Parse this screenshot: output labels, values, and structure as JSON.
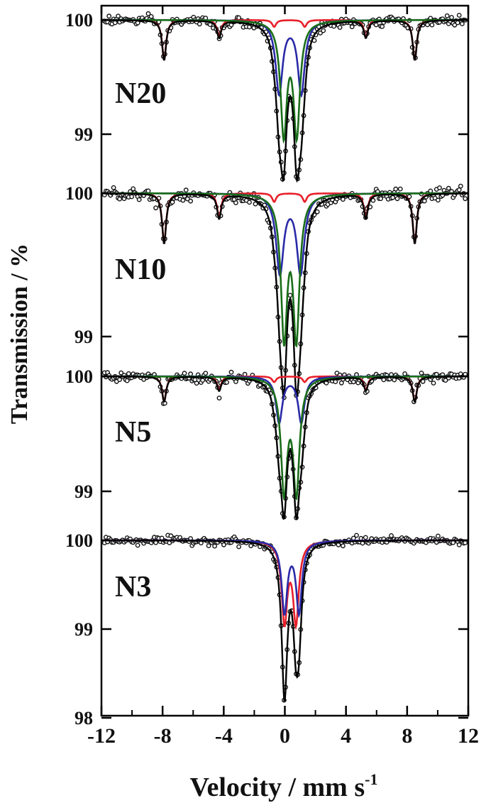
{
  "chart_data": {
    "type": "scatter",
    "title": "",
    "xlabel": "Velocity / mm s",
    "xlabel_superscript": "-1",
    "ylabel": "Transmission / %",
    "xlim": [
      -12,
      12
    ],
    "xticks": [
      -12,
      -8,
      -4,
      0,
      4,
      8,
      12
    ],
    "xtick_labels": [
      "-12",
      "-8",
      "-4",
      "0",
      "4",
      "8",
      "12"
    ],
    "grid": false,
    "colors": {
      "points": "#111111",
      "fit_total": "#000000",
      "sextet": "#e8202a",
      "doublet_1": "#2a2aa8",
      "doublet_2": "#1a6e1a"
    },
    "panels": [
      {
        "label": "N20",
        "ylim": [
          98.9,
          100.05
        ],
        "yticks": [
          99,
          100
        ],
        "ytick_labels": [
          "99",
          "100"
        ],
        "sextet": {
          "lines": [
            -7.9,
            -4.3,
            -0.7,
            1.3,
            5.3,
            8.5
          ],
          "depths": [
            0.35,
            0.15,
            0.06,
            0.06,
            0.15,
            0.35
          ],
          "width": 0.32
        },
        "doublet_1": {
          "center": 0.35,
          "split": 1.45,
          "depth": 0.64,
          "width": 0.55
        },
        "doublet_2": {
          "center": 0.35,
          "split": 0.85,
          "depth": 0.98,
          "width": 0.5
        }
      },
      {
        "label": "N10",
        "ylim": [
          98.9,
          100.05
        ],
        "yticks": [
          99,
          100
        ],
        "ytick_labels": [
          "99",
          "100"
        ],
        "sextet": {
          "lines": [
            -7.9,
            -4.3,
            -0.7,
            1.3,
            5.3,
            8.5
          ],
          "depths": [
            0.35,
            0.17,
            0.06,
            0.06,
            0.17,
            0.35
          ],
          "width": 0.32
        },
        "doublet_1": {
          "center": 0.35,
          "split": 1.35,
          "depth": 0.55,
          "width": 0.6
        },
        "doublet_2": {
          "center": 0.35,
          "split": 0.8,
          "depth": 0.98,
          "width": 0.5
        }
      },
      {
        "label": "N5",
        "ylim": [
          98.8,
          100.05
        ],
        "yticks": [
          99,
          100
        ],
        "ytick_labels": [
          "99",
          "100"
        ],
        "sextet": {
          "lines": [
            -7.9,
            -4.3,
            -0.7,
            1.3,
            5.3,
            8.5
          ],
          "depths": [
            0.22,
            0.12,
            0.05,
            0.05,
            0.12,
            0.22
          ],
          "width": 0.32
        },
        "doublet_1": {
          "center": 0.35,
          "split": 1.45,
          "depth": 0.4,
          "width": 0.5
        },
        "doublet_2": {
          "center": 0.35,
          "split": 0.8,
          "depth": 0.98,
          "width": 0.5
        }
      },
      {
        "label": "N3",
        "ylim": [
          98,
          100.05
        ],
        "yticks": [
          98,
          99,
          100
        ],
        "ytick_labels": [
          "98",
          "99",
          "100"
        ],
        "doublet_red": {
          "center": 0.35,
          "split": 0.75,
          "depth": 0.9,
          "width": 0.45
        },
        "doublet_1": {
          "center": 0.45,
          "split": 0.95,
          "depth": 0.8,
          "width": 0.45
        }
      }
    ]
  }
}
